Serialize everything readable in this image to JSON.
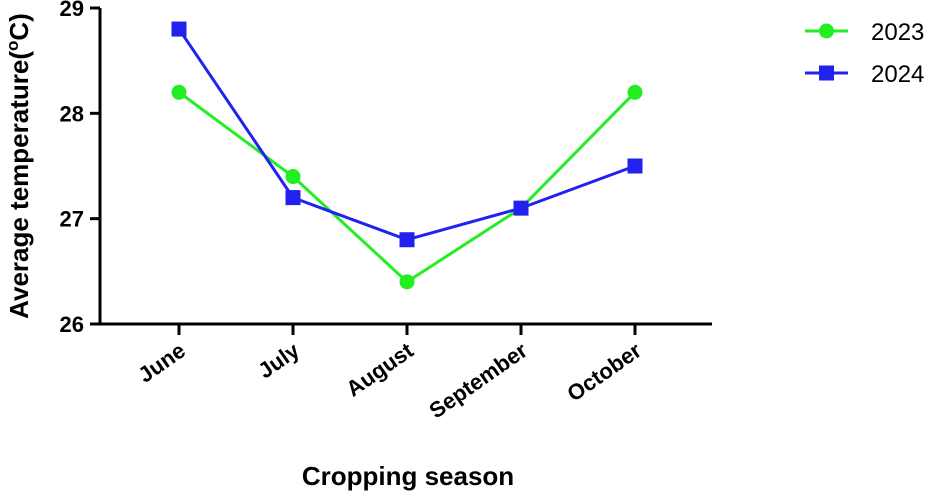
{
  "chart_data": {
    "type": "line",
    "categories": [
      "June",
      "July",
      "August",
      "September",
      "October"
    ],
    "series": [
      {
        "name": "2023",
        "values": [
          28.2,
          27.4,
          26.4,
          27.1,
          28.2
        ],
        "color": "#22ee22",
        "marker": "circle"
      },
      {
        "name": "2024",
        "values": [
          28.8,
          27.2,
          26.8,
          27.1,
          27.5
        ],
        "color": "#2222ee",
        "marker": "square"
      }
    ],
    "xlabel": "Cropping season",
    "ylabel_main": "Average temperature(",
    "ylabel_sup": "o",
    "ylabel_end": "C)",
    "ylim": [
      26,
      29
    ],
    "yticks": [
      "26",
      "27",
      "28",
      "29"
    ],
    "grid": false,
    "legend_position": "top-right"
  }
}
